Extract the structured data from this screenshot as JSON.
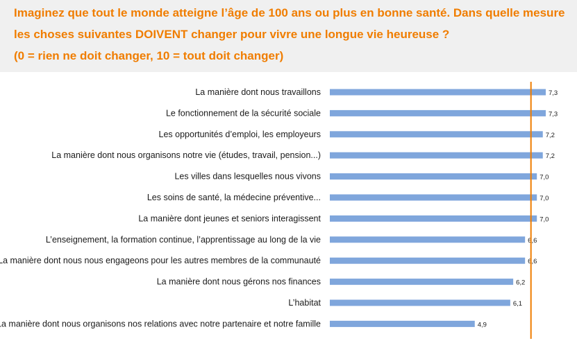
{
  "header": {
    "line1": "Imaginez que tout le monde atteigne l’âge de 100 ans ou plus en bonne santé. Dans quelle mesure",
    "line2": "les choses suivantes DOIVENT changer pour vivre une longue vie heureuse ?",
    "line3": "(0 = rien ne doit changer, 10 = tout doit changer)"
  },
  "colors": {
    "accent": "#f07d00",
    "bar": "#7fa6dc",
    "header_bg": "#f0f0f0"
  },
  "chart_data": {
    "type": "bar",
    "orientation": "horizontal",
    "categories": [
      "La manière dont nous travaillons",
      "Le fonctionnement de la sécurité sociale",
      "Les opportunités d’emploi, les employeurs",
      "La manière dont nous organisons notre vie (études, travail, pension...)",
      "Les villes dans lesquelles nous vivons",
      "Les soins de santé, la médecine préventive...",
      "La manière dont jeunes et seniors interagissent",
      "L’enseignement, la formation continue, l’apprentissage au long de la vie",
      "La manière dont nous nous engageons pour les autres membres de la communauté",
      "La manière dont nous gérons nos finances",
      "L’habitat",
      "La manière dont nous organisons nos relations avec notre partenaire et notre famille"
    ],
    "values": [
      7.3,
      7.3,
      7.2,
      7.2,
      7.0,
      7.0,
      7.0,
      6.6,
      6.6,
      6.2,
      6.1,
      4.9
    ],
    "value_labels": [
      "7,3",
      "7,3",
      "7,2",
      "7,2",
      "7,0",
      "7,0",
      "7,0",
      "6,6",
      "6,6",
      "6,2",
      "6,1",
      "4,9"
    ],
    "xlim": [
      0,
      7.3
    ],
    "reference_line": 6.8,
    "grid": false,
    "legend": "none"
  }
}
